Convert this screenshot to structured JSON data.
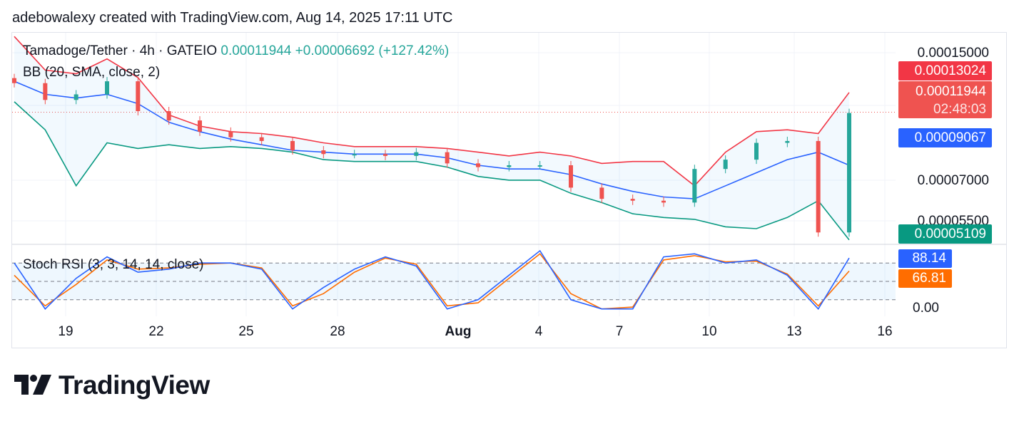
{
  "header": {
    "attribution": "adebowalexy created with TradingView.com, Aug 14, 2025 17:11 UTC"
  },
  "legend": {
    "symbol": "Tamadoge/Tether · 4h · GATEIO",
    "price": "0.00011944",
    "change": "+0.00006692 (+127.42%)",
    "bb": "BB (20, SMA, close, 2)",
    "stoch": "Stoch RSI (3, 3, 14, 14, close)"
  },
  "price_axis": {
    "ticks": [
      "0.00015000",
      "0.00007000",
      "0.00005500"
    ],
    "tags": {
      "bb_upper": "0.00013024",
      "last_price": "0.00011944",
      "countdown": "02:48:03",
      "bb_basis": "0.00009067",
      "bb_lower": "0.00005109"
    }
  },
  "rsi_axis": {
    "zero": "0.00",
    "k_value": "88.14",
    "d_value": "66.81"
  },
  "x_axis": {
    "labels": [
      "19",
      "22",
      "25",
      "28",
      "Aug",
      "4",
      "7",
      "10",
      "13",
      "16"
    ]
  },
  "brand": {
    "name": "TradingView"
  },
  "colors": {
    "up": "#26a69a",
    "down": "#ef5350",
    "bb_upper": "#f23645",
    "bb_basis": "#2962ff",
    "bb_lower": "#089981",
    "stoch_k": "#2962ff",
    "stoch_d": "#ff6d00"
  },
  "chart_data": [
    {
      "type": "candlestick",
      "title": "Tamadoge/Tether · 4h · GATEIO",
      "x": [
        "Jul 18",
        "Jul 19",
        "Jul 20",
        "Jul 21",
        "Jul 22",
        "Jul 23",
        "Jul 24",
        "Jul 25",
        "Jul 26",
        "Jul 27",
        "Jul 28",
        "Jul 29",
        "Jul 30",
        "Jul 31",
        "Aug 1",
        "Aug 2",
        "Aug 3",
        "Aug 4",
        "Aug 5",
        "Aug 6",
        "Aug 7",
        "Aug 8",
        "Aug 9",
        "Aug 10",
        "Aug 11",
        "Aug 12",
        "Aug 13",
        "Aug 14"
      ],
      "close": [
        0.000135,
        0.000126,
        0.000129,
        0.000136,
        0.00012,
        0.000115,
        0.000109,
        0.000106,
        0.000104,
        9.9e-05,
        9.7e-05,
        9.7e-05,
        9.6e-05,
        9.8e-05,
        9.2e-05,
        9e-05,
        9.1e-05,
        9.1e-05,
        7.9e-05,
        7.3e-05,
        7.2e-05,
        7.1e-05,
        8.9e-05,
        9.4e-05,
        0.000103,
        0.000104,
        5.5e-05,
        0.000119
      ],
      "series": [
        {
          "name": "BB upper",
          "values": [
            0.00016,
            0.000142,
            0.00014,
            0.000148,
            0.000138,
            0.000118,
            0.000112,
            0.000109,
            0.000108,
            0.000106,
            0.000103,
            0.000101,
            0.000101,
            0.000101,
            0.0001,
            9.8e-05,
            9.6e-05,
            9.8e-05,
            9.6e-05,
            9.2e-05,
            9.3e-05,
            9.3e-05,
            8e-05,
            9.8e-05,
            0.000109,
            0.00011,
            0.000108,
            0.00013
          ]
        },
        {
          "name": "BB basis",
          "values": [
            0.000136,
            0.000129,
            0.000127,
            0.000129,
            0.000124,
            0.000114,
            0.000109,
            0.000105,
            0.000102,
            9.9e-05,
            9.8e-05,
            9.7e-05,
            9.7e-05,
            9.7e-05,
            9.5e-05,
            9.1e-05,
            8.9e-05,
            8.9e-05,
            8.6e-05,
            8.1e-05,
            7.7e-05,
            7.4e-05,
            7.3e-05,
            8e-05,
            8.7e-05,
            9.4e-05,
            9.8e-05,
            9.1e-05
          ]
        },
        {
          "name": "BB lower",
          "values": [
            0.000125,
            0.00011,
            8e-05,
            0.000103,
            0.0001,
            0.000102,
            0.0001,
            0.000101,
            0.0001,
            9.8e-05,
            9.4e-05,
            9.3e-05,
            9.3e-05,
            9.3e-05,
            9e-05,
            8.5e-05,
            8.3e-05,
            8.3e-05,
            7.6e-05,
            7.1e-05,
            6.5e-05,
            6.3e-05,
            6.2e-05,
            5.8e-05,
            5.7e-05,
            6.3e-05,
            7.2e-05,
            5.1e-05
          ]
        }
      ],
      "last_price": 0.00011944,
      "ylim": [
        4.9e-05,
        0.000162
      ]
    },
    {
      "type": "line",
      "title": "Stoch RSI (3, 3, 14, 14, close)",
      "x": [
        "Jul 18",
        "Jul 19",
        "Jul 20",
        "Jul 21",
        "Jul 22",
        "Jul 23",
        "Jul 24",
        "Jul 25",
        "Jul 26",
        "Jul 27",
        "Jul 28",
        "Jul 29",
        "Jul 30",
        "Jul 31",
        "Aug 1",
        "Aug 2",
        "Aug 3",
        "Aug 4",
        "Aug 5",
        "Aug 6",
        "Aug 7",
        "Aug 8",
        "Aug 9",
        "Aug 10",
        "Aug 11",
        "Aug 12",
        "Aug 13",
        "Aug 14"
      ],
      "series": [
        {
          "name": "K",
          "values": [
            80,
            5,
            55,
            90,
            65,
            70,
            80,
            80,
            70,
            5,
            40,
            70,
            90,
            75,
            5,
            20,
            60,
            100,
            20,
            5,
            5,
            90,
            95,
            80,
            85,
            60,
            5,
            88.14
          ]
        },
        {
          "name": "D",
          "values": [
            60,
            10,
            45,
            85,
            70,
            72,
            78,
            80,
            72,
            10,
            30,
            65,
            88,
            78,
            10,
            15,
            55,
            95,
            30,
            5,
            8,
            85,
            92,
            82,
            83,
            62,
            10,
            66.81
          ]
        }
      ],
      "ylim": [
        0,
        100
      ],
      "levels": [
        80,
        50,
        20
      ]
    }
  ]
}
